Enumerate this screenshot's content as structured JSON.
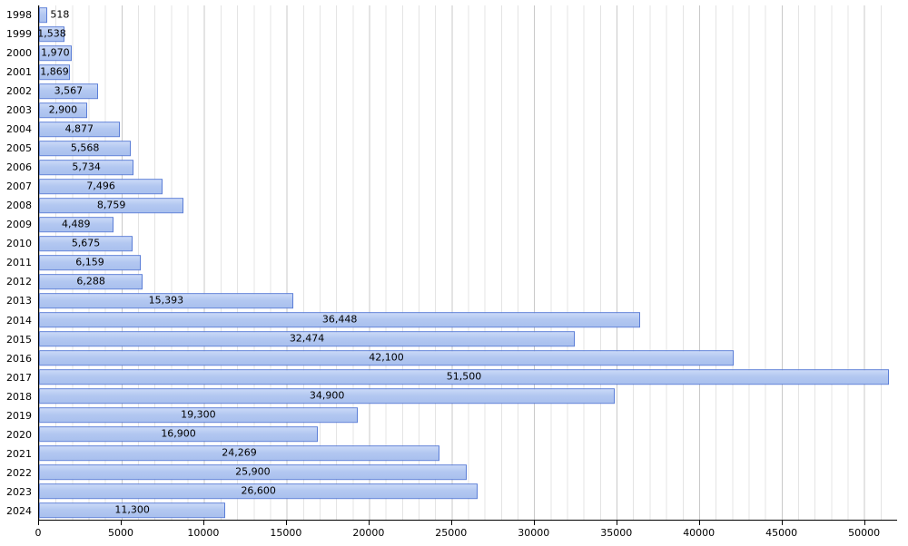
{
  "chart_data": {
    "type": "bar",
    "orientation": "horizontal",
    "title": "",
    "xlabel": "",
    "ylabel": "",
    "categories": [
      "1998",
      "1999",
      "2000",
      "2001",
      "2002",
      "2003",
      "2004",
      "2005",
      "2006",
      "2007",
      "2008",
      "2009",
      "2010",
      "2011",
      "2012",
      "2013",
      "2014",
      "2015",
      "2016",
      "2017",
      "2018",
      "2019",
      "2020",
      "2021",
      "2022",
      "2023",
      "2024"
    ],
    "values": [
      518,
      1538,
      1970,
      1869,
      3567,
      2900,
      4877,
      5568,
      5734,
      7496,
      8759,
      4489,
      5675,
      6159,
      6288,
      15393,
      36448,
      32474,
      42100,
      51500,
      34900,
      19300,
      16900,
      24269,
      25900,
      26600,
      11300
    ],
    "value_labels": [
      "518",
      "1,538",
      "1,970",
      "1,869",
      "3,567",
      "2,900",
      "4,877",
      "5,568",
      "5,734",
      "7,496",
      "8,759",
      "4,489",
      "5,675",
      "6,159",
      "6,288",
      "15,393",
      "36,448",
      "32,474",
      "42,100",
      "51,500",
      "34,900",
      "19,300",
      "16,900",
      "24,269",
      "25,900",
      "26,600",
      "11,300"
    ],
    "xlim": [
      0,
      52000
    ],
    "x_ticks": [
      0,
      5000,
      10000,
      15000,
      20000,
      25000,
      30000,
      35000,
      40000,
      45000,
      50000
    ],
    "x_tick_labels": [
      "0",
      "5000",
      "10000",
      "15000",
      "20000",
      "25000",
      "30000",
      "35000",
      "40000",
      "45000",
      "50000"
    ],
    "grid": "vertical, minor every 1000, major every 5000",
    "legend": "none",
    "colors": {
      "bar_fill": "#b3c8f1",
      "bar_border": "#5b7ed7",
      "grid_minor": "#e4e4e4",
      "grid_major": "#c9c9c9",
      "axis": "#000000",
      "background": "#ffffff",
      "label_text": "#000000"
    }
  }
}
